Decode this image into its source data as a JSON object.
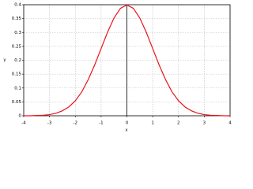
{
  "chart_data": {
    "type": "line",
    "x_label": "x",
    "y_label": "y",
    "x": [
      -4,
      -3.75,
      -3.5,
      -3.25,
      -3,
      -2.75,
      -2.5,
      -2.25,
      -2,
      -1.75,
      -1.5,
      -1.25,
      -1,
      -0.75,
      -0.5,
      -0.25,
      0,
      0.25,
      0.5,
      0.75,
      1,
      1.25,
      1.5,
      1.75,
      2,
      2.25,
      2.5,
      2.75,
      3,
      3.25,
      3.5,
      3.75,
      4
    ],
    "series": [
      {
        "color": "#e8141b",
        "values": [
          0.0,
          0.0,
          0.001,
          0.002,
          0.004,
          0.009,
          0.018,
          0.032,
          0.054,
          0.086,
          0.13,
          0.183,
          0.242,
          0.301,
          0.352,
          0.387,
          0.399,
          0.387,
          0.352,
          0.301,
          0.242,
          0.183,
          0.13,
          0.086,
          0.054,
          0.032,
          0.018,
          0.009,
          0.004,
          0.002,
          0.001,
          0.0,
          0.0
        ]
      }
    ],
    "xlim": [
      -4,
      4
    ],
    "xticks": [
      -4,
      -3,
      -2,
      -1,
      0,
      1,
      2,
      3,
      4
    ],
    "ylim": [
      0,
      0.4
    ],
    "yticks": [
      0,
      0.05,
      0.1,
      0.15,
      0.2,
      0.25,
      0.3,
      0.35,
      0.4
    ],
    "grid": true
  }
}
